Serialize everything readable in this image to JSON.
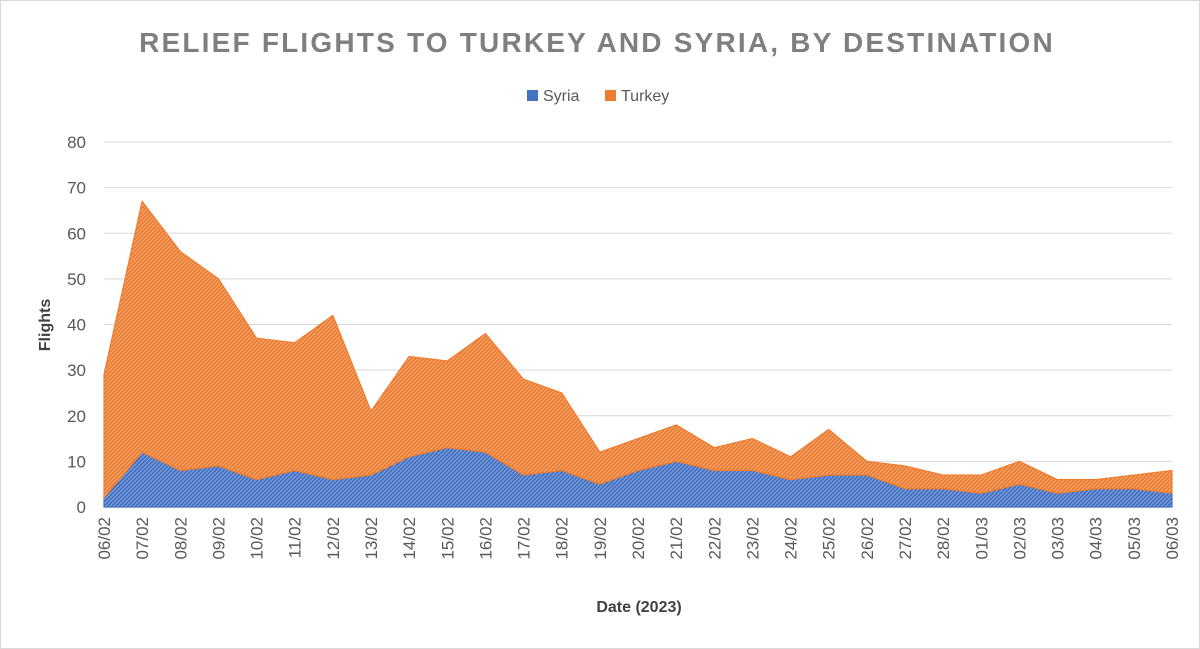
{
  "chart_data": {
    "type": "area",
    "stacked": true,
    "title": "RELIEF FLIGHTS TO TURKEY AND SYRIA, BY DESTINATION",
    "xlabel": "Date (2023)",
    "ylabel": "Flights",
    "ylim": [
      0,
      80
    ],
    "yticks": [
      "0",
      "10",
      "20",
      "30",
      "40",
      "50",
      "60",
      "70",
      "80"
    ],
    "legend_position": "top-center",
    "categories": [
      "06/02",
      "07/02",
      "08/02",
      "09/02",
      "10/02",
      "11/02",
      "12/02",
      "13/02",
      "14/02",
      "15/02",
      "16/02",
      "17/02",
      "18/02",
      "19/02",
      "20/02",
      "21/02",
      "22/02",
      "23/02",
      "24/02",
      "25/02",
      "26/02",
      "27/02",
      "28/02",
      "01/03",
      "02/03",
      "03/03",
      "04/03",
      "05/03",
      "06/03"
    ],
    "series": [
      {
        "name": "Syria",
        "color": "#4472C4",
        "values": [
          2,
          12,
          8,
          9,
          6,
          8,
          6,
          7,
          11,
          13,
          12,
          7,
          8,
          5,
          8,
          10,
          8,
          8,
          6,
          7,
          7,
          4,
          4,
          3,
          5,
          3,
          4,
          4,
          3
        ]
      },
      {
        "name": "Turkey",
        "color": "#ED7D31",
        "values": [
          27,
          55,
          48,
          41,
          31,
          28,
          36,
          14,
          22,
          19,
          26,
          21,
          17,
          7,
          7,
          8,
          5,
          7,
          5,
          10,
          3,
          5,
          3,
          4,
          5,
          3,
          2,
          3,
          5
        ]
      }
    ]
  }
}
